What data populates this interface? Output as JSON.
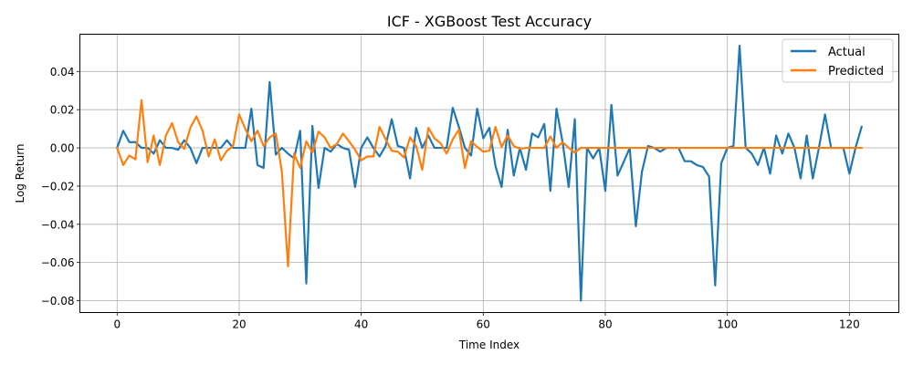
{
  "chart_data": {
    "type": "line",
    "title": "ICF - XGBoost Test Accuracy",
    "xlabel": "Time Index",
    "ylabel": "Log Return",
    "xlim": [
      -6.1,
      128.1
    ],
    "ylim": [
      -0.0862,
      0.0595
    ],
    "xticks": [
      0,
      20,
      40,
      60,
      80,
      100,
      120
    ],
    "xtick_labels": [
      "0",
      "20",
      "40",
      "60",
      "80",
      "100",
      "120"
    ],
    "yticks": [
      -0.08,
      -0.06,
      -0.04,
      -0.02,
      0.0,
      0.02,
      0.04
    ],
    "ytick_labels": [
      "−0.08",
      "−0.06",
      "−0.04",
      "−0.02",
      "0.00",
      "0.02",
      "0.04"
    ],
    "grid": true,
    "legend_position": "top-right",
    "series": [
      {
        "name": "Actual",
        "color": "#1f77b4",
        "values": [
          0.0,
          0.009,
          0.003,
          0.003,
          0.0,
          0.0,
          -0.003,
          0.004,
          0.0,
          0.0,
          -0.001,
          0.004,
          0.0,
          -0.008,
          0.0,
          0.0,
          0.0,
          0.0,
          0.004,
          0.0,
          0.0,
          0.0,
          0.0205,
          -0.009,
          -0.0105,
          0.0345,
          -0.0035,
          0.0,
          -0.003,
          -0.0055,
          0.009,
          -0.071,
          0.0115,
          -0.021,
          0.0,
          -0.002,
          0.002,
          0.0,
          -0.001,
          -0.0205,
          0.0,
          0.0055,
          0.0,
          -0.0045,
          0.001,
          0.015,
          0.001,
          0.0,
          -0.016,
          0.0105,
          0.0,
          0.0065,
          0.0,
          0.0,
          0.0,
          0.021,
          0.011,
          0.0,
          -0.004,
          0.0205,
          0.005,
          0.0105,
          -0.0095,
          -0.0205,
          0.0095,
          -0.0145,
          0.0,
          -0.0115,
          0.0075,
          0.0055,
          0.0125,
          -0.0225,
          0.0205,
          0.003,
          -0.0205,
          0.015,
          -0.08,
          0.0,
          -0.0055,
          0.0,
          -0.0225,
          0.0225,
          -0.0145,
          -0.0075,
          0.0,
          -0.041,
          -0.0125,
          0.001,
          0.0,
          -0.002,
          0.0,
          0.0,
          0.0,
          -0.007,
          -0.007,
          -0.009,
          -0.01,
          -0.015,
          -0.072,
          -0.008,
          0.0,
          0.001,
          0.0535,
          0.0,
          -0.003,
          -0.009,
          0.0,
          -0.0135,
          0.0065,
          -0.003,
          0.0075,
          0.0,
          -0.016,
          0.0065,
          -0.016,
          0.0,
          0.0175,
          0.0,
          0.0,
          0.0,
          -0.0135,
          0.0,
          0.011
        ]
      },
      {
        "name": "Predicted",
        "color": "#ff7f0e",
        "values": [
          0.0,
          -0.009,
          -0.004,
          -0.006,
          0.025,
          -0.0075,
          0.0065,
          -0.009,
          0.0065,
          0.013,
          0.003,
          -0.0005,
          0.0105,
          0.0165,
          0.009,
          -0.0045,
          0.0045,
          -0.0065,
          -0.0015,
          0.001,
          0.0175,
          0.01,
          0.0035,
          0.009,
          0.001,
          0.0055,
          0.0075,
          -0.0125,
          -0.062,
          -0.003,
          -0.0105,
          0.0035,
          -0.0025,
          0.0085,
          0.0055,
          0.0,
          0.002,
          0.0075,
          0.0035,
          -0.001,
          -0.0065,
          -0.0045,
          -0.0045,
          0.011,
          0.0045,
          -0.0015,
          -0.002,
          -0.005,
          0.0055,
          0.001,
          -0.0115,
          0.0105,
          0.005,
          0.0025,
          -0.003,
          0.0045,
          0.0095,
          -0.0105,
          0.0035,
          0.0005,
          -0.002,
          -0.0015,
          0.011,
          0.0005,
          0.0065,
          0.001,
          -0.0005,
          0.0,
          0.0,
          0.0,
          0.0,
          0.006,
          0.0,
          0.003,
          0.0,
          -0.0025,
          0.0,
          0.0,
          0.0,
          0.0,
          0.0,
          0.0,
          0.0,
          0.0,
          0.0,
          0.0,
          0.0,
          0.0,
          0.0,
          0.0,
          0.0,
          0.0,
          0.0,
          0.0,
          0.0,
          0.0,
          0.0,
          0.0,
          0.0,
          0.0,
          0.0,
          0.0,
          0.0,
          0.0,
          0.0,
          0.0,
          0.0,
          0.0,
          0.0,
          0.0,
          0.0,
          0.0,
          0.0,
          0.0,
          0.0,
          0.0,
          0.0,
          0.0,
          0.0,
          0.0,
          0.0,
          0.0,
          0.0
        ]
      }
    ]
  }
}
